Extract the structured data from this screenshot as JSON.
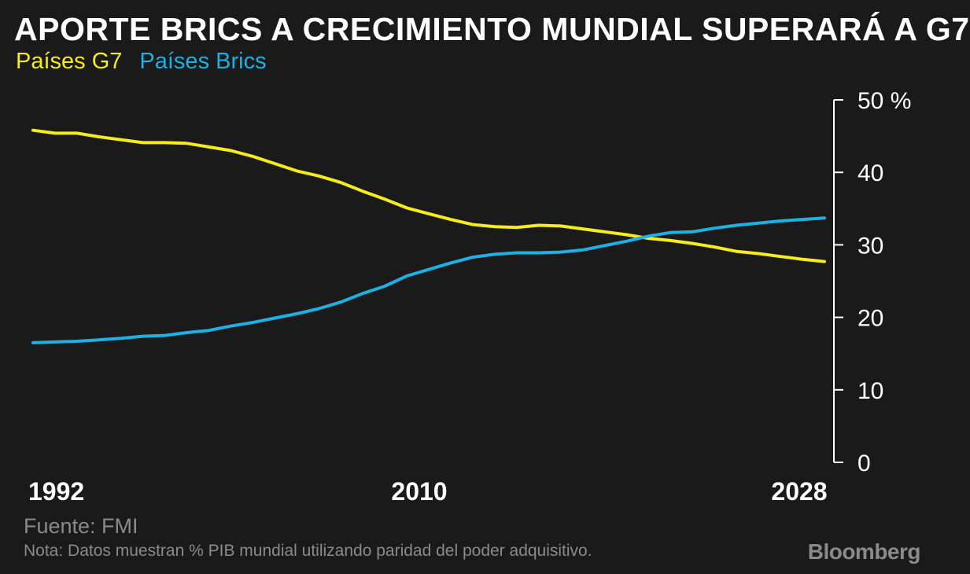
{
  "header": {
    "title": "APORTE BRICS A CRECIMIENTO MUNDIAL SUPERARÁ A G7"
  },
  "legend": {
    "g7_label": "Países G7",
    "brics_label": "Países Brics"
  },
  "footer": {
    "source": "Fuente: FMI",
    "note": "Nota: Datos muestran % PIB mundial utilizando paridad del poder adquisitivo.",
    "brand": "Bloomberg"
  },
  "colors": {
    "background": "#1a1a1a",
    "g7": "#f5ec1a",
    "brics": "#1fb0e3",
    "axis": "#ffffff",
    "muted": "#8a8a8a"
  },
  "chart_data": {
    "type": "line",
    "title": "APORTE BRICS A CRECIMIENTO MUNDIAL SUPERARÁ A G7",
    "xlabel": "",
    "ylabel": "",
    "x": [
      1992,
      1993,
      1994,
      1995,
      1996,
      1997,
      1998,
      1999,
      2000,
      2001,
      2002,
      2003,
      2004,
      2005,
      2006,
      2007,
      2008,
      2009,
      2010,
      2011,
      2012,
      2013,
      2014,
      2015,
      2016,
      2017,
      2018,
      2019,
      2020,
      2021,
      2022,
      2023,
      2024,
      2025,
      2026,
      2027,
      2028
    ],
    "xticks": [
      "1992",
      "2010",
      "2028"
    ],
    "xtick_values": [
      1992,
      2010,
      2028
    ],
    "xlim": [
      1992,
      2028
    ],
    "ylim": [
      0,
      50
    ],
    "yticks": [
      0,
      10,
      20,
      30,
      40,
      50
    ],
    "ytick_labels": [
      "0",
      "10",
      "20",
      "30",
      "40",
      "50 %"
    ],
    "y_axis_position": "right",
    "grid": false,
    "legend_position": "top-left",
    "series": [
      {
        "name": "Países G7",
        "color": "#f5ec1a",
        "values": [
          45.8,
          45.4,
          45.4,
          44.9,
          44.5,
          44.1,
          44.1,
          44.0,
          43.5,
          43.0,
          42.2,
          41.2,
          40.2,
          39.5,
          38.6,
          37.4,
          36.3,
          35.1,
          34.3,
          33.5,
          32.8,
          32.5,
          32.4,
          32.7,
          32.6,
          32.2,
          31.8,
          31.4,
          30.9,
          30.6,
          30.2,
          29.7,
          29.1,
          28.8,
          28.4,
          28.0,
          27.7
        ]
      },
      {
        "name": "Países Brics",
        "color": "#1fb0e3",
        "values": [
          16.5,
          16.6,
          16.7,
          16.9,
          17.1,
          17.4,
          17.5,
          17.9,
          18.2,
          18.8,
          19.3,
          19.9,
          20.5,
          21.2,
          22.1,
          23.3,
          24.3,
          25.7,
          26.6,
          27.5,
          28.3,
          28.7,
          28.9,
          28.9,
          29.0,
          29.3,
          29.9,
          30.5,
          31.2,
          31.7,
          31.8,
          32.3,
          32.7,
          33.0,
          33.3,
          33.5,
          33.7
        ]
      }
    ]
  }
}
